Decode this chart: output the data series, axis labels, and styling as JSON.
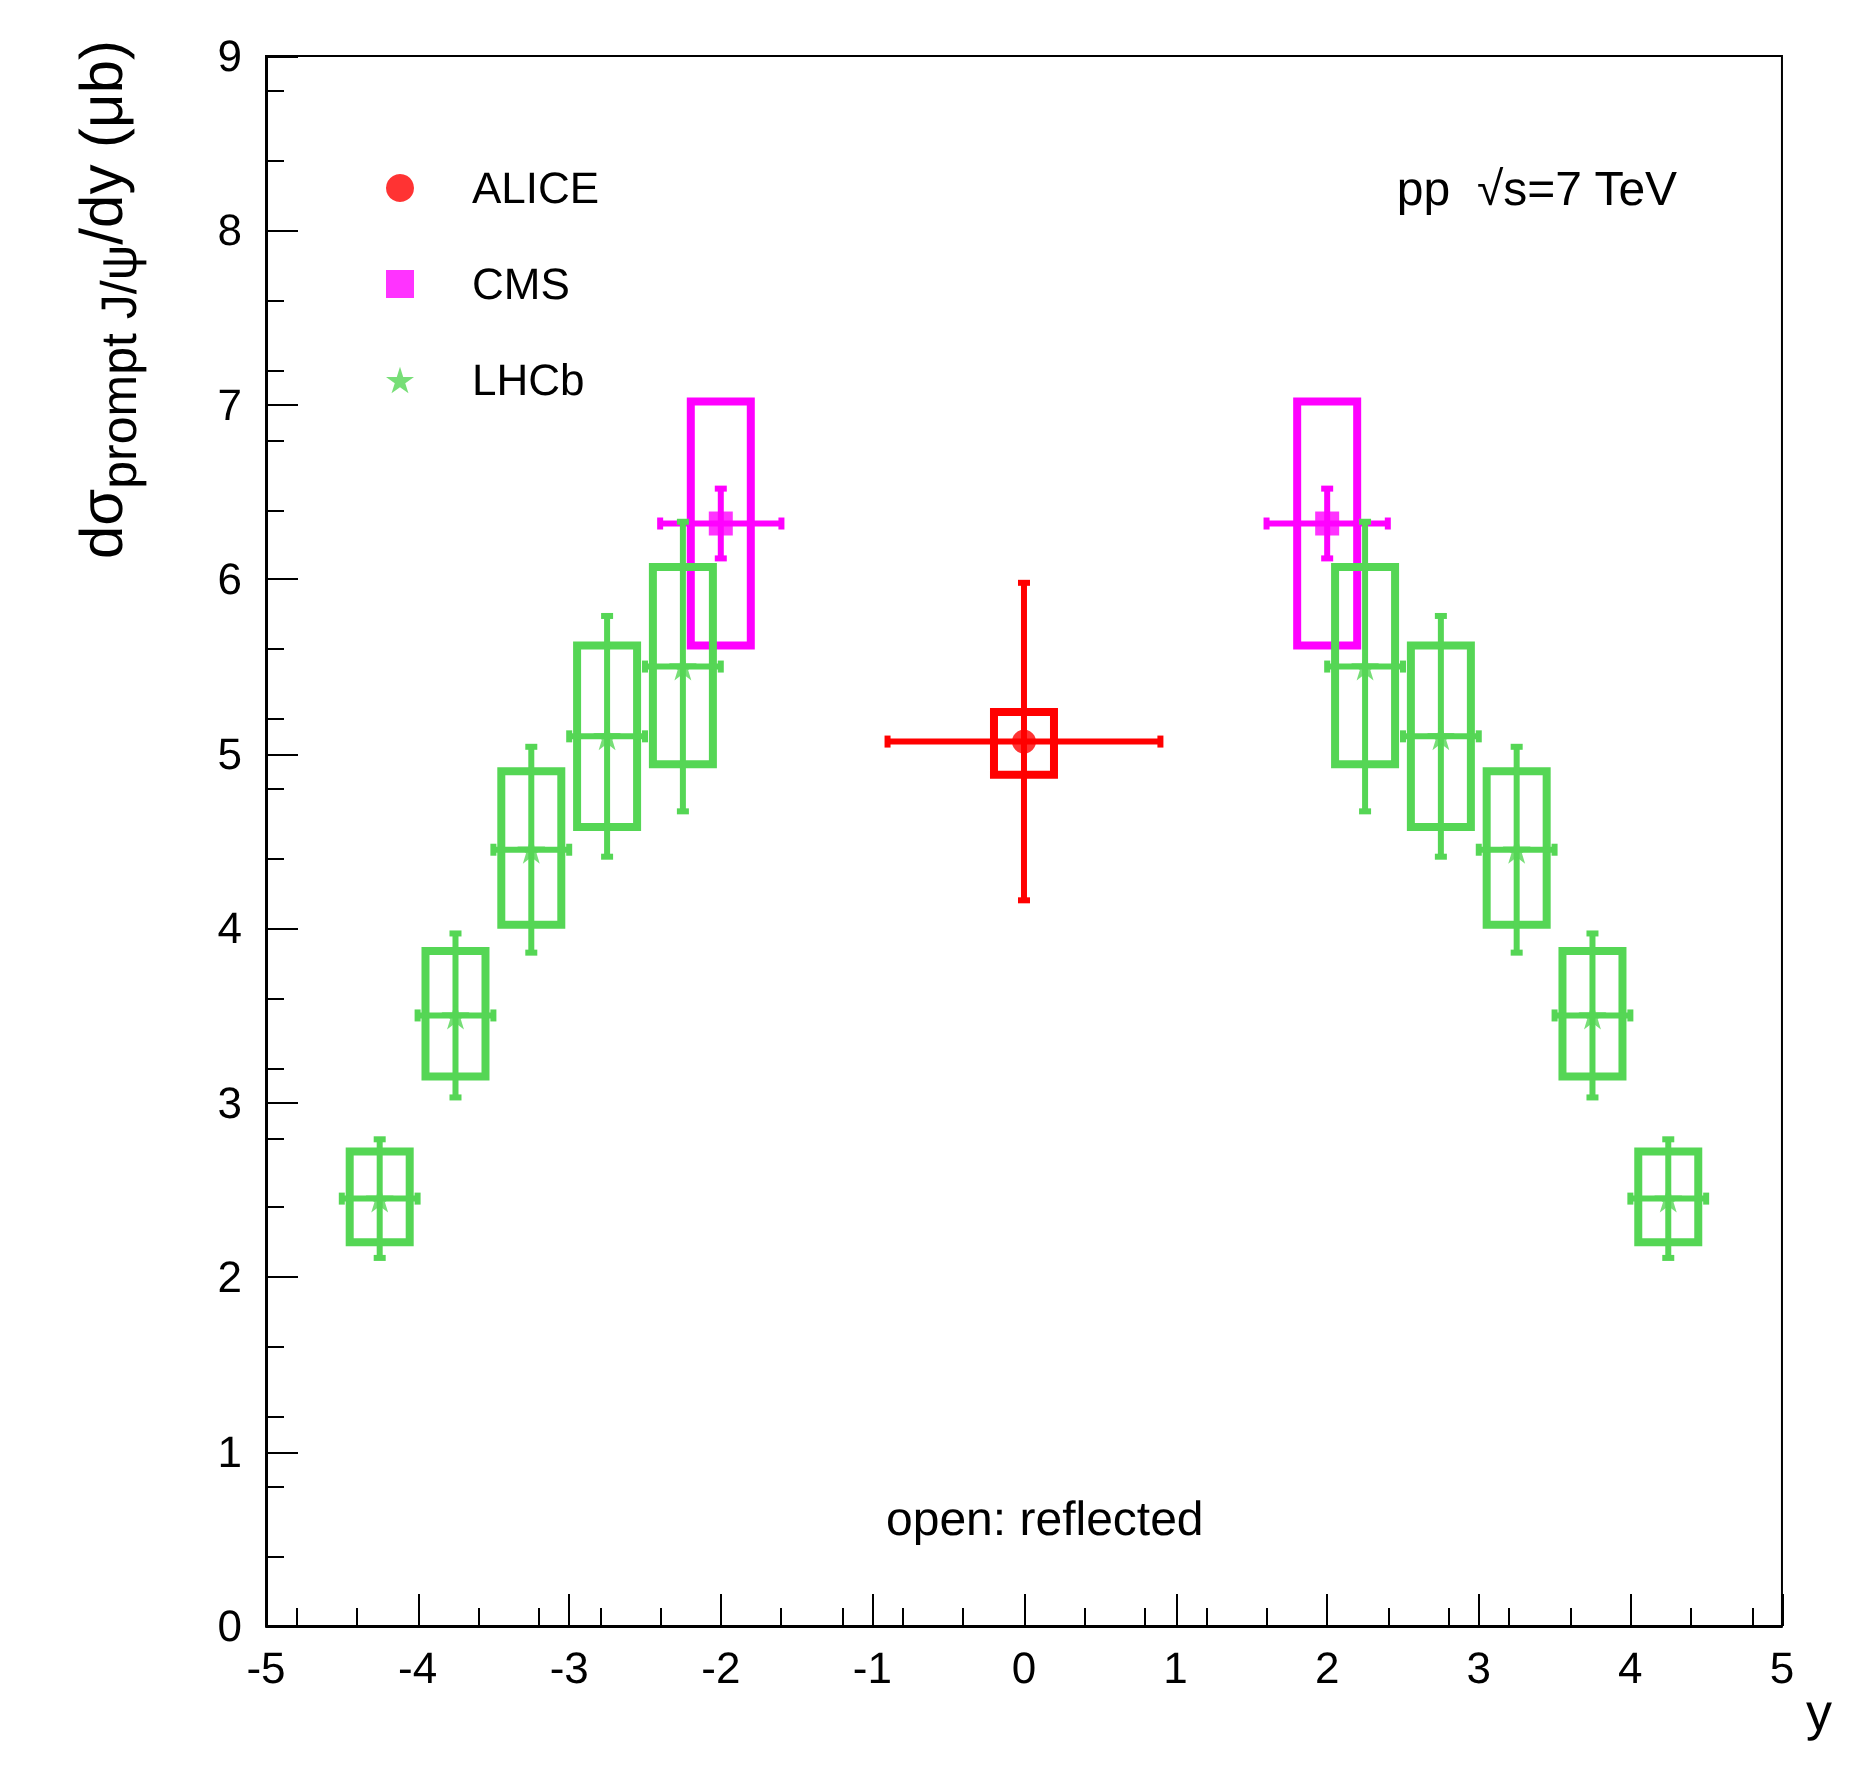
{
  "chart_data": {
    "type": "scatter",
    "xlabel": "y",
    "ylabel": "dσ$_{prompt J/ψ}$/dy (μb)",
    "annotations": [
      "pp  √s=7 TeV",
      "open: reflected"
    ],
    "xlim": [
      -5,
      5
    ],
    "xticks": [
      -5,
      -4,
      -3,
      -2,
      -1,
      0,
      1,
      2,
      3,
      4,
      5
    ],
    "ylim": [
      0,
      9
    ],
    "yticks": [
      0,
      1,
      2,
      3,
      4,
      5,
      6,
      7,
      8,
      9
    ],
    "grid": false,
    "legend": "top left",
    "series": [
      {
        "name": "ALICE",
        "color": "#ff0000",
        "marker": "circle",
        "x": [
          0
        ],
        "values": [
          5.07
        ],
        "errors": [
          0.91
        ],
        "xerrors": [
          0.9
        ]
      },
      {
        "name": "CMS",
        "color": "#ff00ff",
        "marker": "square",
        "x": [
          -2,
          2
        ],
        "values": [
          6.32,
          6.32
        ],
        "errors": [
          0.2,
          0.2
        ],
        "xerrors": [
          0.4,
          0.4
        ]
      },
      {
        "name": "LHCb",
        "color": "#55d655",
        "marker": "star",
        "x": [
          -4.25,
          -3.75,
          -3.25,
          -2.75,
          -2.25,
          2.25,
          2.75,
          3.25,
          3.75,
          4.25
        ],
        "values": [
          2.45,
          3.5,
          4.45,
          5.1,
          5.5,
          5.5,
          5.1,
          4.45,
          3.5,
          2.45
        ],
        "errors": [
          0.34,
          0.47,
          0.59,
          0.69,
          0.83,
          0.83,
          0.69,
          0.59,
          0.47,
          0.34
        ],
        "xerrors": [
          0.25,
          0.25,
          0.25,
          0.25,
          0.25,
          0.25,
          0.25,
          0.25,
          0.25,
          0.25
        ]
      },
      {
        "type": "bar",
        "color": "#ff0000",
        "x": [
          0
        ],
        "base": [
          4.88
        ],
        "values": [
          0.36
        ]
      },
      {
        "type": "bar",
        "color": "#ff00ff",
        "x": [
          -2,
          2
        ],
        "base": [
          5.62,
          5.62
        ],
        "values": [
          1.4,
          1.4
        ]
      },
      {
        "type": "bar",
        "color": "#55d655",
        "x": [
          -4.25,
          -3.75,
          -3.25,
          -2.75,
          -2.25,
          2.25,
          2.75,
          3.25,
          3.75,
          4.25
        ],
        "base": [
          2.2,
          3.15,
          4.02,
          4.58,
          4.94,
          4.94,
          4.58,
          4.02,
          3.15,
          2.2
        ],
        "values": [
          0.52,
          0.72,
          0.88,
          1.04,
          1.13,
          1.13,
          1.04,
          0.88,
          0.72,
          0.52
        ]
      }
    ]
  }
}
